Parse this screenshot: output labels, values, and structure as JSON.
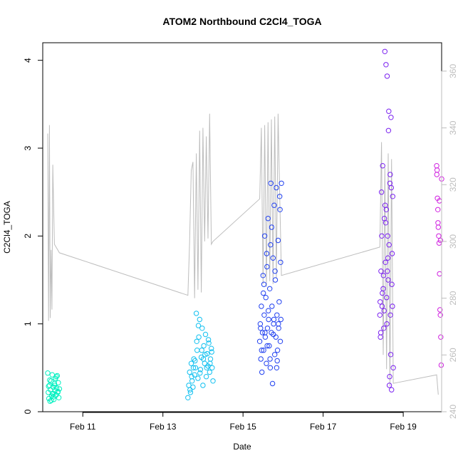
{
  "chart_data": {
    "type": "scatter",
    "title": "ATOM2 Northbound C2Cl4_TOGA",
    "xlabel": "Date",
    "ylabel": "C2Cl4_TOGA",
    "x_axis": {
      "type": "date",
      "range": [
        "2017-02-10T00:00",
        "2017-02-19T23:00"
      ],
      "ticks": [
        "Feb 11",
        "Feb 13",
        "Feb 15",
        "Feb 17",
        "Feb 19"
      ]
    },
    "y_axis": {
      "range": [
        0,
        4.2
      ],
      "ticks": [
        "0",
        "1",
        "2",
        "3",
        "4"
      ]
    },
    "y2_axis": {
      "label": "",
      "color": "#bdbdbd",
      "range": [
        240,
        370
      ],
      "ticks": [
        "240",
        "260",
        "280",
        "300",
        "320",
        "340",
        "360"
      ]
    },
    "grid": false,
    "legend": "none",
    "secondary_series": {
      "type": "line",
      "color": "#bdbdbd",
      "x": [
        "2017-02-10T03:00",
        "2017-02-10T03:30",
        "2017-02-10T04:00",
        "2017-02-10T04:30",
        "2017-02-10T05:00",
        "2017-02-10T05:30",
        "2017-02-10T06:00",
        "2017-02-10T07:00",
        "2017-02-10T08:00",
        "2017-02-10T09:00",
        "2017-02-10T10:00",
        "2017-02-13T15:00",
        "2017-02-13T16:00",
        "2017-02-13T17:00",
        "2017-02-13T18:00",
        "2017-02-13T19:00",
        "2017-02-13T20:00",
        "2017-02-13T21:00",
        "2017-02-13T22:00",
        "2017-02-13T23:00",
        "2017-02-14T00:00",
        "2017-02-14T01:00",
        "2017-02-14T02:00",
        "2017-02-14T03:00",
        "2017-02-14T04:00",
        "2017-02-14T05:00",
        "2017-02-14T06:00",
        "2017-02-15T10:00",
        "2017-02-15T11:00",
        "2017-02-15T12:00",
        "2017-02-15T13:00",
        "2017-02-15T14:00",
        "2017-02-15T15:00",
        "2017-02-15T16:00",
        "2017-02-15T17:00",
        "2017-02-15T18:00",
        "2017-02-15T19:00",
        "2017-02-15T20:00",
        "2017-02-15T21:00",
        "2017-02-15T22:00",
        "2017-02-15T23:00",
        "2017-02-18T10:00",
        "2017-02-18T11:00",
        "2017-02-18T12:00",
        "2017-02-18T13:00",
        "2017-02-18T14:00",
        "2017-02-18T15:00",
        "2017-02-18T16:00",
        "2017-02-18T17:00",
        "2017-02-18T18:00",
        "2017-02-19T20:00",
        "2017-02-19T21:00"
      ],
      "y": [
        338,
        272,
        341,
        273,
        297,
        276,
        327,
        299,
        298,
        297,
        296,
        281,
        300,
        325,
        328,
        280,
        331,
        283,
        339,
        282,
        340,
        300,
        337,
        301,
        345,
        299,
        300,
        315,
        340,
        285,
        341,
        284,
        342,
        286,
        343,
        285,
        344,
        287,
        345,
        316,
        288,
        298,
        335,
        260,
        326,
        255,
        331,
        249,
        329,
        250,
        253,
        246
      ]
    },
    "series": [
      {
        "color": "#00f0c0",
        "x": [
          "2017-02-10T03:00",
          "2017-02-10T03:20",
          "2017-02-10T03:40",
          "2017-02-10T04:00",
          "2017-02-10T04:20",
          "2017-02-10T04:40",
          "2017-02-10T05:00",
          "2017-02-10T05:20",
          "2017-02-10T05:40",
          "2017-02-10T06:00",
          "2017-02-10T06:20",
          "2017-02-10T06:40",
          "2017-02-10T07:00",
          "2017-02-10T07:20",
          "2017-02-10T07:40",
          "2017-02-10T08:00",
          "2017-02-10T08:20",
          "2017-02-10T08:40",
          "2017-02-10T09:00",
          "2017-02-10T09:20",
          "2017-02-10T09:40",
          "2017-02-10T10:00",
          "2017-02-10T04:10",
          "2017-02-10T05:10",
          "2017-02-10T06:10",
          "2017-02-10T07:10",
          "2017-02-10T08:10",
          "2017-02-10T09:10",
          "2017-02-10T03:30",
          "2017-02-10T06:30"
        ],
        "y": [
          0.44,
          0.22,
          0.15,
          0.3,
          0.12,
          0.25,
          0.35,
          0.18,
          0.42,
          0.2,
          0.28,
          0.14,
          0.32,
          0.24,
          0.38,
          0.19,
          0.27,
          0.41,
          0.22,
          0.33,
          0.16,
          0.26,
          0.36,
          0.13,
          0.21,
          0.3,
          0.4,
          0.23,
          0.29,
          0.17
        ]
      },
      {
        "color": "#10c0f0",
        "x": [
          "2017-02-13T15:00",
          "2017-02-13T15:30",
          "2017-02-13T16:00",
          "2017-02-13T16:30",
          "2017-02-13T17:00",
          "2017-02-13T17:30",
          "2017-02-13T18:00",
          "2017-02-13T18:30",
          "2017-02-13T19:00",
          "2017-02-13T19:30",
          "2017-02-13T20:00",
          "2017-02-13T20:30",
          "2017-02-13T21:00",
          "2017-02-13T21:30",
          "2017-02-13T22:00",
          "2017-02-13T22:30",
          "2017-02-13T23:00",
          "2017-02-13T23:30",
          "2017-02-14T00:00",
          "2017-02-14T00:30",
          "2017-02-14T01:00",
          "2017-02-14T01:30",
          "2017-02-14T02:00",
          "2017-02-14T02:30",
          "2017-02-14T03:00",
          "2017-02-14T03:30",
          "2017-02-14T04:00",
          "2017-02-14T04:30",
          "2017-02-14T05:00",
          "2017-02-14T05:30",
          "2017-02-14T06:00",
          "2017-02-13T16:15",
          "2017-02-13T17:15",
          "2017-02-13T18:15",
          "2017-02-13T19:15",
          "2017-02-13T20:15",
          "2017-02-13T21:15",
          "2017-02-13T22:15",
          "2017-02-13T23:15",
          "2017-02-14T00:15",
          "2017-02-14T01:15",
          "2017-02-14T02:15",
          "2017-02-14T03:15",
          "2017-02-14T04:15",
          "2017-02-14T05:15"
        ],
        "y": [
          0.16,
          0.3,
          0.45,
          0.22,
          0.55,
          0.35,
          0.28,
          0.6,
          0.42,
          0.5,
          1.12,
          0.7,
          0.38,
          0.85,
          1.05,
          0.48,
          0.62,
          0.95,
          0.3,
          0.75,
          0.55,
          0.88,
          0.4,
          0.66,
          0.52,
          0.78,
          0.45,
          0.6,
          0.72,
          0.5,
          0.35,
          0.25,
          0.4,
          0.5,
          0.58,
          0.8,
          0.98,
          0.44,
          0.7,
          0.6,
          0.65,
          0.5,
          0.82,
          0.55,
          0.68
        ]
      },
      {
        "color": "#2040f0",
        "x": [
          "2017-02-15T10:00",
          "2017-02-15T10:20",
          "2017-02-15T10:40",
          "2017-02-15T11:00",
          "2017-02-15T11:20",
          "2017-02-15T11:40",
          "2017-02-15T12:00",
          "2017-02-15T12:20",
          "2017-02-15T12:40",
          "2017-02-15T13:00",
          "2017-02-15T13:20",
          "2017-02-15T13:40",
          "2017-02-15T14:00",
          "2017-02-15T14:20",
          "2017-02-15T14:40",
          "2017-02-15T15:00",
          "2017-02-15T15:20",
          "2017-02-15T15:40",
          "2017-02-15T16:00",
          "2017-02-15T16:20",
          "2017-02-15T16:40",
          "2017-02-15T17:00",
          "2017-02-15T17:20",
          "2017-02-15T17:40",
          "2017-02-15T18:00",
          "2017-02-15T18:20",
          "2017-02-15T18:40",
          "2017-02-15T19:00",
          "2017-02-15T19:20",
          "2017-02-15T19:40",
          "2017-02-15T20:00",
          "2017-02-15T20:20",
          "2017-02-15T20:40",
          "2017-02-15T21:00",
          "2017-02-15T21:20",
          "2017-02-15T21:40",
          "2017-02-15T22:00",
          "2017-02-15T22:20",
          "2017-02-15T22:40",
          "2017-02-15T23:00",
          "2017-02-15T11:10",
          "2017-02-15T12:10",
          "2017-02-15T13:10",
          "2017-02-15T14:10",
          "2017-02-15T15:10",
          "2017-02-15T16:10",
          "2017-02-15T17:10",
          "2017-02-15T18:10",
          "2017-02-15T19:10",
          "2017-02-15T20:10",
          "2017-02-15T21:10",
          "2017-02-15T22:10",
          "2017-02-15T10:30",
          "2017-02-15T12:30",
          "2017-02-15T14:30",
          "2017-02-15T16:30",
          "2017-02-15T18:30",
          "2017-02-15T20:30",
          "2017-02-15T22:30"
        ],
        "y": [
          0.8,
          1.0,
          0.6,
          1.2,
          0.45,
          0.9,
          1.55,
          0.7,
          1.1,
          2.0,
          0.85,
          1.3,
          0.55,
          1.65,
          0.95,
          2.2,
          1.05,
          0.75,
          1.4,
          0.5,
          2.6,
          0.9,
          1.2,
          0.32,
          1.75,
          1.0,
          2.35,
          0.65,
          1.5,
          0.85,
          2.55,
          1.1,
          0.7,
          1.95,
          0.95,
          1.25,
          2.45,
          0.8,
          1.05,
          2.6,
          0.7,
          1.35,
          0.9,
          1.8,
          1.15,
          0.6,
          2.1,
          0.88,
          1.6,
          0.5,
          1.0,
          2.3,
          0.95,
          1.45,
          0.75,
          1.9,
          1.05,
          0.58,
          1.7
        ]
      },
      {
        "color": "#7a20f0",
        "x": [
          "2017-02-18T10:00",
          "2017-02-18T10:20",
          "2017-02-18T10:40",
          "2017-02-18T11:00",
          "2017-02-18T11:20",
          "2017-02-18T11:40",
          "2017-02-18T12:00",
          "2017-02-18T12:20",
          "2017-02-18T12:40",
          "2017-02-18T13:00",
          "2017-02-18T13:20",
          "2017-02-18T13:40",
          "2017-02-18T14:00",
          "2017-02-18T14:20",
          "2017-02-18T14:40",
          "2017-02-18T15:00",
          "2017-02-18T15:20",
          "2017-02-18T15:40",
          "2017-02-18T16:00",
          "2017-02-18T16:20",
          "2017-02-18T16:40",
          "2017-02-18T17:00",
          "2017-02-18T17:20",
          "2017-02-18T17:40",
          "2017-02-18T18:00",
          "2017-02-18T10:10",
          "2017-02-18T11:10",
          "2017-02-18T12:10",
          "2017-02-18T13:10",
          "2017-02-18T14:10",
          "2017-02-18T15:10",
          "2017-02-18T16:10",
          "2017-02-18T17:10",
          "2017-02-18T10:30",
          "2017-02-18T11:30",
          "2017-02-18T12:30",
          "2017-02-18T13:30",
          "2017-02-18T14:30",
          "2017-02-18T15:30",
          "2017-02-18T16:30",
          "2017-02-18T17:30",
          "2017-02-18T13:50",
          "2017-02-18T14:50",
          "2017-02-18T15:50",
          "2017-02-18T16:50"
        ],
        "y": [
          1.1,
          0.85,
          1.6,
          2.5,
          1.2,
          2.8,
          1.4,
          0.95,
          2.2,
          4.1,
          1.7,
          3.95,
          1.3,
          3.82,
          2.0,
          1.5,
          3.42,
          0.3,
          2.6,
          1.1,
          3.35,
          0.25,
          1.8,
          2.45,
          0.5,
          1.25,
          2.0,
          1.55,
          2.35,
          1.0,
          3.2,
          2.7,
          1.45,
          0.9,
          1.35,
          1.15,
          2.15,
          1.6,
          1.9,
          0.65,
          1.2,
          2.3,
          1.75,
          0.4,
          2.55
        ]
      },
      {
        "color": "#d020e0",
        "x": [
          "2017-02-19T20:00",
          "2017-02-19T20:15",
          "2017-02-19T20:30",
          "2017-02-19T20:45",
          "2017-02-19T21:00",
          "2017-02-19T21:15",
          "2017-02-19T21:30",
          "2017-02-19T21:45",
          "2017-02-19T22:00",
          "2017-02-19T22:15",
          "2017-02-19T22:30",
          "2017-02-19T22:45",
          "2017-02-19T23:00",
          "2017-02-19T20:05",
          "2017-02-19T20:50",
          "2017-02-19T21:40",
          "2017-02-19T22:20"
        ],
        "y": [
          2.8,
          2.75,
          2.43,
          2.3,
          2.1,
          2.0,
          1.92,
          1.57,
          1.16,
          1.1,
          0.85,
          0.53,
          2.65,
          2.7,
          2.15,
          2.4,
          1.95
        ]
      }
    ]
  }
}
